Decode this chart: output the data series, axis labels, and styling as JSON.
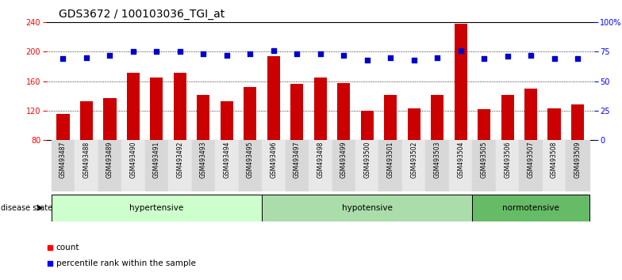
{
  "title": "GDS3672 / 100103036_TGI_at",
  "samples": [
    "GSM493487",
    "GSM493488",
    "GSM493489",
    "GSM493490",
    "GSM493491",
    "GSM493492",
    "GSM493493",
    "GSM493494",
    "GSM493495",
    "GSM493496",
    "GSM493497",
    "GSM493498",
    "GSM493499",
    "GSM493500",
    "GSM493501",
    "GSM493502",
    "GSM493503",
    "GSM493504",
    "GSM493505",
    "GSM493506",
    "GSM493507",
    "GSM493508",
    "GSM493509"
  ],
  "counts": [
    116,
    133,
    137,
    172,
    165,
    172,
    141,
    133,
    152,
    194,
    156,
    165,
    157,
    120,
    141,
    123,
    141,
    238,
    122,
    141,
    150,
    123,
    128
  ],
  "percentiles": [
    69,
    70,
    72,
    75,
    75,
    75,
    73,
    72,
    73,
    76,
    73,
    73,
    72,
    68,
    70,
    68,
    70,
    76,
    69,
    71,
    72,
    69,
    69
  ],
  "group_spans": [
    [
      0,
      9,
      "#ccffcc",
      "hypertensive"
    ],
    [
      9,
      18,
      "#aaddaa",
      "hypotensive"
    ],
    [
      18,
      23,
      "#66bb66",
      "normotensive"
    ]
  ],
  "ylim_left": [
    80,
    240
  ],
  "ylim_right": [
    0,
    100
  ],
  "yticks_left": [
    80,
    120,
    160,
    200,
    240
  ],
  "yticks_right": [
    0,
    25,
    50,
    75,
    100
  ],
  "yticklabels_right": [
    "0",
    "25",
    "50",
    "75",
    "100%"
  ],
  "hlines": [
    120,
    160,
    200
  ],
  "bar_color": "#cc0000",
  "dot_color": "#0000cc",
  "bar_width": 0.55,
  "title_fontsize": 10,
  "tick_fontsize": 7,
  "label_fontsize": 7.5
}
